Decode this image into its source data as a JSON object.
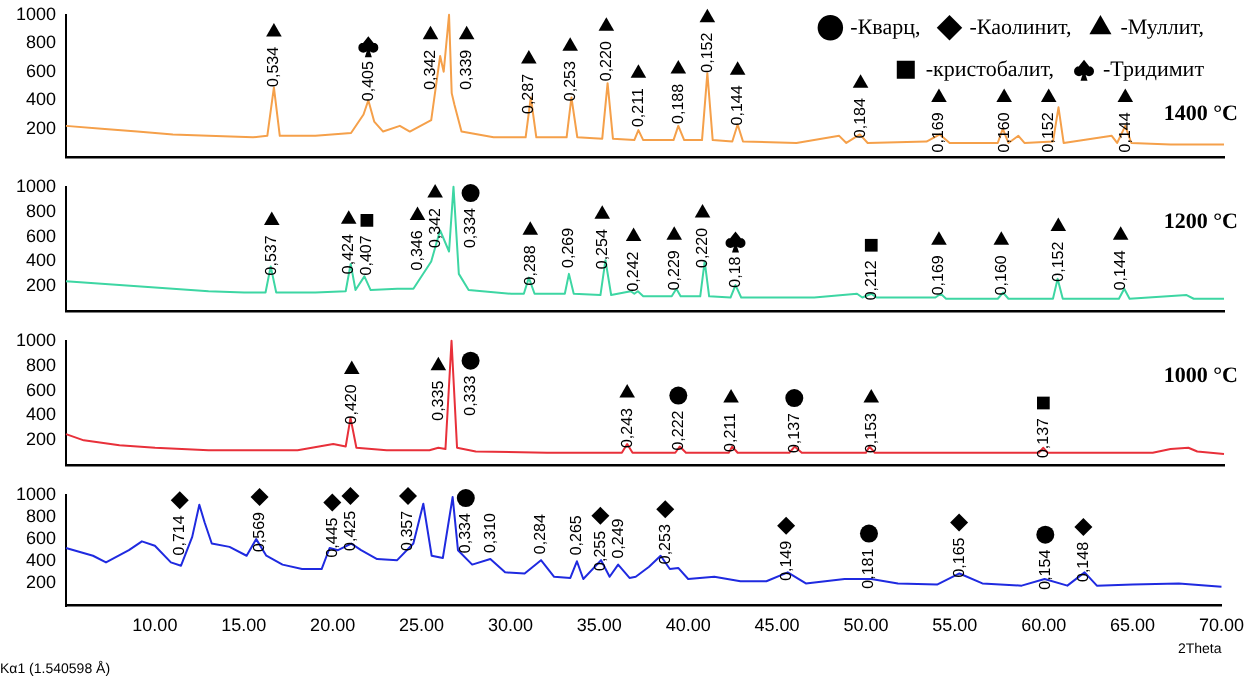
{
  "chart_data": [
    {
      "type": "line",
      "ylim": [
        0,
        1000
      ],
      "yticks": [
        200,
        400,
        600,
        800,
        1000
      ],
      "xlim": [
        5,
        70
      ],
      "tick_labels": "y",
      "legend": "top right",
      "series": [
        {
          "color": "#f5a04a",
          "x": [
            5,
            7,
            9,
            11,
            13,
            15.5,
            16.3,
            16.67,
            17.0,
            19,
            21,
            21.7,
            21.97,
            22.3,
            22.8,
            23.74,
            24.3,
            25.5,
            26.0,
            26.2,
            26.5,
            26.65,
            26.8,
            27.2,
            29,
            30.8,
            31.09,
            31.4,
            33.1,
            33.37,
            33.7,
            35.1,
            35.4,
            35.7,
            36.9,
            37.13,
            37.4,
            39.1,
            39.37,
            39.7,
            40.7,
            41.0,
            41.3,
            42.4,
            42.7,
            43.0,
            46,
            48.4,
            48.8,
            49.56,
            50,
            53.3,
            54.05,
            54.6,
            57.3,
            57.58,
            57.9,
            58.46,
            58.8,
            60.4,
            60.71,
            61.0,
            63.7,
            64.0,
            64.46,
            64.8,
            67,
            70
          ],
          "values": [
            220,
            200,
            180,
            160,
            150,
            140,
            150,
            490,
            150,
            150,
            170,
            300,
            400,
            250,
            180,
            220,
            180,
            260,
            710,
            600,
            1000,
            450,
            370,
            180,
            140,
            140,
            420,
            140,
            140,
            420,
            140,
            130,
            520,
            130,
            120,
            190,
            120,
            120,
            220,
            120,
            120,
            590,
            120,
            110,
            230,
            110,
            100,
            150,
            100,
            160,
            100,
            110,
            160,
            100,
            100,
            200,
            100,
            150,
            100,
            110,
            350,
            100,
            150,
            100,
            220,
            100,
            90,
            90
          ]
        },
        {
          "type": "scatter",
          "name": "-Кварц,",
          "marker": "circle",
          "color": "#000000"
        },
        {
          "type": "scatter",
          "name": "-Каолинит,",
          "marker": "diamond",
          "color": "#000000"
        },
        {
          "type": "scatter",
          "name": "-Муллит,",
          "marker": "triangle",
          "color": "#000000",
          "x": [
            16.67,
            25.46,
            27.49,
            30.98,
            33.3,
            35.33,
            37.13,
            39.37,
            41.0,
            42.7,
            49.6,
            54.0,
            57.66,
            60.16,
            64.46
          ],
          "values": [
            880,
            860,
            860,
            690,
            780,
            920,
            590,
            620,
            980,
            610,
            520,
            420,
            420,
            420,
            420
          ]
        },
        {
          "type": "scatter",
          "name": "-кристобалит,",
          "marker": "square",
          "color": "#000000"
        },
        {
          "type": "scatter",
          "name": "-Тридимит",
          "color": "#000000",
          "x": [
            21.97
          ],
          "values": [
            780
          ]
        }
      ],
      "annotations": [
        "1400 °C",
        {
          "text": "0,534",
          "x": 16.67,
          "y": 880
        },
        {
          "text": "0,405",
          "x": 21.97,
          "y": 780
        },
        {
          "text": "0,342",
          "x": 25.46,
          "y": 860
        },
        {
          "text": "0,339",
          "x": 27.49,
          "y": 860
        },
        {
          "text": "0,287",
          "x": 30.98,
          "y": 690
        },
        {
          "text": "0,253",
          "x": 33.3,
          "y": 780
        },
        {
          "text": "0,220",
          "x": 35.33,
          "y": 920
        },
        {
          "text": "0,211",
          "x": 37.13,
          "y": 590
        },
        {
          "text": "0,188",
          "x": 39.37,
          "y": 620
        },
        {
          "text": "0,152",
          "x": 41.0,
          "y": 980
        },
        {
          "text": "0,144",
          "x": 42.7,
          "y": 610
        },
        {
          "text": "0,184",
          "x": 49.6,
          "y": 520
        },
        {
          "text": "0,169",
          "x": 54.0,
          "y": 420
        },
        {
          "text": "0,160",
          "x": 57.66,
          "y": 420
        },
        {
          "text": "0,152",
          "x": 60.16,
          "y": 420
        },
        {
          "text": "0,144",
          "x": 64.46,
          "y": 420
        }
      ]
    },
    {
      "type": "line",
      "ylim": [
        0,
        1000
      ],
      "yticks": [
        200,
        400,
        600,
        800,
        1000
      ],
      "xlim": [
        5,
        70
      ],
      "tick_labels": "y",
      "series": [
        {
          "color": "#3dd6a3",
          "x": [
            5,
            7,
            9,
            11,
            13,
            15,
            16.2,
            16.49,
            16.8,
            19,
            20.7,
            20.98,
            21.25,
            21.75,
            22.1,
            23.6,
            24.5,
            25.5,
            26.0,
            26.5,
            26.75,
            27.05,
            27.6,
            30.0,
            30.7,
            30.98,
            31.3,
            33.0,
            33.23,
            33.5,
            35.0,
            35.28,
            35.6,
            36.7,
            36.9,
            37.1,
            37.4,
            39.0,
            39.26,
            39.5,
            40.6,
            40.85,
            41.1,
            42.3,
            42.58,
            42.9,
            47,
            49.4,
            49.7,
            50.2,
            50.5,
            53.8,
            54.1,
            54.4,
            57.3,
            57.6,
            57.9,
            60.4,
            60.66,
            60.95,
            64.1,
            64.4,
            64.7,
            67.9,
            68.3,
            70
          ],
          "values": [
            240,
            220,
            200,
            180,
            160,
            150,
            150,
            360,
            150,
            150,
            160,
            380,
            170,
            280,
            170,
            180,
            180,
            400,
            650,
            480,
            1000,
            300,
            170,
            140,
            140,
            270,
            140,
            140,
            300,
            140,
            130,
            410,
            130,
            160,
            140,
            160,
            120,
            120,
            180,
            120,
            120,
            400,
            120,
            110,
            210,
            110,
            110,
            140,
            110,
            140,
            110,
            110,
            140,
            100,
            100,
            150,
            100,
            100,
            260,
            100,
            100,
            180,
            100,
            130,
            100,
            100
          ]
        },
        {
          "type": "scatter",
          "marker": "triangle",
          "color": "#000000",
          "x": [
            16.55,
            20.87,
            24.73,
            25.72,
            31.06,
            35.1,
            36.86,
            39.14,
            40.73,
            54.0,
            57.5,
            60.7,
            64.2
          ],
          "values": [
            730,
            740,
            770,
            950,
            650,
            780,
            600,
            610,
            790,
            570,
            570,
            680,
            610
          ]
        },
        {
          "type": "scatter",
          "marker": "square",
          "color": "#000000",
          "x": [
            21.89,
            50.2
          ],
          "values": [
            730,
            530
          ]
        },
        {
          "type": "scatter",
          "marker": "circle",
          "color": "#000000",
          "x": [
            27.71
          ],
          "values": [
            950
          ]
        },
        {
          "type": "scatter",
          "color": "#000000",
          "x": [
            42.58
          ],
          "values": [
            560
          ]
        }
      ],
      "annotations": [
        "1200 °C",
        {
          "text": "0,537",
          "x": 16.55,
          "y": 730
        },
        {
          "text": "0,424",
          "x": 20.87,
          "y": 740
        },
        {
          "text": "0,407",
          "x": 21.89,
          "y": 730
        },
        {
          "text": "0,346",
          "x": 24.73,
          "y": 770
        },
        {
          "text": "0,342",
          "x": 25.72,
          "y": 950
        },
        {
          "text": "0,334",
          "x": 27.71,
          "y": 950
        },
        {
          "text": "0,288",
          "x": 31.06,
          "y": 650
        },
        {
          "text": "0,269",
          "x": 33.23,
          "y": 300
        },
        {
          "text": "0,254",
          "x": 35.1,
          "y": 780
        },
        {
          "text": "0,242",
          "x": 36.86,
          "y": 600
        },
        {
          "text": "0,229",
          "x": 39.14,
          "y": 610
        },
        {
          "text": "0,220",
          "x": 40.73,
          "y": 790
        },
        {
          "text": "0,18",
          "x": 42.58,
          "y": 560
        },
        {
          "text": "0,212",
          "x": 50.2,
          "y": 530
        },
        {
          "text": "0,169",
          "x": 54.0,
          "y": 570
        },
        {
          "text": "0,160",
          "x": 57.5,
          "y": 570
        },
        {
          "text": "0,152",
          "x": 60.7,
          "y": 680
        },
        {
          "text": "0,144",
          "x": 64.2,
          "y": 610
        }
      ]
    },
    {
      "type": "line",
      "ylim": [
        0,
        1000
      ],
      "yticks": [
        200,
        400,
        600,
        800,
        1000
      ],
      "xlim": [
        5,
        70
      ],
      "tick_labels": "y",
      "series": [
        {
          "color": "#e8303a",
          "x": [
            5,
            6,
            8,
            10,
            13,
            16,
            18,
            20,
            20.7,
            20.97,
            21.3,
            23,
            25.4,
            25.9,
            26.3,
            26.64,
            26.95,
            28,
            32,
            36.2,
            36.5,
            36.8,
            39.2,
            39.45,
            39.8,
            42.2,
            42.4,
            42.7,
            45.6,
            45.9,
            46.3,
            49.9,
            50.1,
            50.4,
            54.8,
            59.6,
            59.86,
            60.1,
            66,
            67,
            68,
            68.5,
            70
          ],
          "values": [
            250,
            200,
            160,
            140,
            120,
            120,
            120,
            170,
            150,
            380,
            140,
            120,
            120,
            140,
            130,
            1000,
            140,
            110,
            100,
            100,
            170,
            100,
            100,
            150,
            100,
            100,
            150,
            100,
            100,
            150,
            100,
            100,
            150,
            100,
            100,
            100,
            140,
            100,
            100,
            130,
            140,
            110,
            90
          ]
        },
        {
          "type": "scatter",
          "marker": "triangle",
          "color": "#000000",
          "x": [
            21.04,
            25.9,
            36.5,
            42.33,
            50.2
          ],
          "values": [
            770,
            800,
            580,
            540,
            540
          ]
        },
        {
          "type": "scatter",
          "marker": "circle",
          "color": "#000000",
          "x": [
            27.71,
            39.37,
            45.88
          ],
          "values": [
            840,
            560,
            540
          ]
        },
        {
          "type": "scatter",
          "marker": "square",
          "color": "#000000",
          "x": [
            59.86
          ],
          "values": [
            500
          ]
        }
      ],
      "annotations": [
        "1000 °C",
        {
          "text": "0,420",
          "x": 21.04,
          "y": 770
        },
        {
          "text": "0,335",
          "x": 25.9,
          "y": 800
        },
        {
          "text": "0,333",
          "x": 27.71,
          "y": 840
        },
        {
          "text": "0,243",
          "x": 36.5,
          "y": 580
        },
        {
          "text": "0,222",
          "x": 39.37,
          "y": 560
        },
        {
          "text": "0,211",
          "x": 42.33,
          "y": 540
        },
        {
          "text": "0,137",
          "x": 45.88,
          "y": 540
        },
        {
          "text": "0,153",
          "x": 50.2,
          "y": 540
        },
        {
          "text": "0,137",
          "x": 59.86,
          "y": 500
        }
      ]
    },
    {
      "type": "line",
      "ylim": [
        0,
        1000
      ],
      "yticks": [
        200,
        400,
        600,
        800,
        1000
      ],
      "xlim": [
        5,
        70
      ],
      "xticks": [
        {
          "value": 10,
          "label": "10.00"
        },
        {
          "value": 15,
          "label": "15.00"
        },
        {
          "value": 20,
          "label": "20.00"
        },
        {
          "value": 25,
          "label": "25.00"
        },
        {
          "value": 30,
          "label": "30.00"
        },
        {
          "value": 35,
          "label": "35.00"
        },
        {
          "value": 40,
          "label": "40.00"
        },
        {
          "value": 45,
          "label": "45.00"
        },
        {
          "value": 50,
          "label": "50.00"
        },
        {
          "value": 55,
          "label": "55.00"
        },
        {
          "value": 60,
          "label": "60.00"
        },
        {
          "value": 65,
          "label": "65.00"
        },
        {
          "value": 70,
          "label": "70.00"
        }
      ],
      "xlabel": "2Theta",
      "series": [
        {
          "color": "#1f2ae0",
          "x": [
            5,
            6.52,
            7.25,
            8.54,
            9.27,
            10.0,
            10.9,
            11.47,
            12.1,
            12.5,
            12.8,
            13.2,
            14.2,
            15.16,
            15.7,
            16.27,
            17.18,
            18.28,
            19.38,
            19.83,
            20.3,
            21.05,
            21.6,
            22.5,
            23.63,
            24.54,
            25.1,
            25.57,
            26.2,
            26.75,
            27.05,
            27.85,
            28.87,
            29.7,
            30.8,
            31.72,
            32.46,
            33.37,
            33.74,
            34.1,
            35.1,
            35.58,
            36.06,
            36.7,
            37.05,
            37.8,
            38.45,
            38.97,
            39.44,
            40.0,
            41.47,
            42.94,
            44.4,
            45.6,
            46.62,
            48.8,
            50.3,
            51.8,
            54.0,
            55.26,
            56.55,
            58.76,
            60.05,
            61.33,
            62.3,
            62.99,
            65.0,
            67.6,
            70
          ],
          "values": [
            520,
            450,
            390,
            500,
            580,
            540,
            390,
            360,
            620,
            910,
            750,
            560,
            530,
            450,
            600,
            450,
            370,
            330,
            330,
            520,
            500,
            560,
            500,
            420,
            410,
            560,
            920,
            450,
            430,
            980,
            500,
            370,
            420,
            300,
            290,
            410,
            260,
            250,
            400,
            240,
            410,
            260,
            370,
            250,
            260,
            350,
            450,
            330,
            340,
            240,
            260,
            220,
            220,
            300,
            200,
            240,
            240,
            200,
            190,
            290,
            200,
            180,
            240,
            180,
            300,
            180,
            190,
            200,
            170
          ]
        },
        {
          "type": "scatter",
          "marker": "diamond",
          "color": "#000000",
          "x": [
            11.4,
            15.89,
            19.98,
            21.0,
            24.24,
            35.06,
            38.71,
            45.51,
            55.24,
            62.23
          ],
          "values": [
            950,
            980,
            930,
            990,
            990,
            810,
            870,
            720,
            750,
            710
          ]
        },
        {
          "type": "scatter",
          "marker": "circle",
          "color": "#000000",
          "x": [
            27.49,
            50.17,
            60.09
          ],
          "values": [
            970,
            650,
            640
          ]
        }
      ],
      "annotations": [
        "Kα1 (1.540598 Å)",
        {
          "text": "0,714",
          "x": 11.4,
          "y": 950
        },
        {
          "text": "0,569",
          "x": 15.89,
          "y": 980
        },
        {
          "text": "0,445",
          "x": 19.98,
          "y": 930
        },
        {
          "text": "0,425",
          "x": 21.0,
          "y": 990
        },
        {
          "text": "0,357",
          "x": 24.24,
          "y": 990
        },
        {
          "text": "0,334",
          "x": 27.49,
          "y": 970
        },
        {
          "text": "0,310",
          "x": 28.87,
          "y": 420
        },
        {
          "text": "0,284",
          "x": 31.72,
          "y": 410
        },
        {
          "text": "0,265",
          "x": 33.74,
          "y": 400
        },
        {
          "text": "0,255",
          "x": 35.06,
          "y": 810
        },
        {
          "text": "0,249",
          "x": 36.06,
          "y": 370
        },
        {
          "text": "0,253",
          "x": 38.71,
          "y": 870
        },
        {
          "text": "0,149",
          "x": 45.51,
          "y": 720
        },
        {
          "text": "0,181",
          "x": 50.17,
          "y": 650
        },
        {
          "text": "0,165",
          "x": 55.24,
          "y": 750
        },
        {
          "text": "0,154",
          "x": 60.09,
          "y": 640
        },
        {
          "text": "0,148",
          "x": 62.23,
          "y": 710
        }
      ]
    }
  ]
}
